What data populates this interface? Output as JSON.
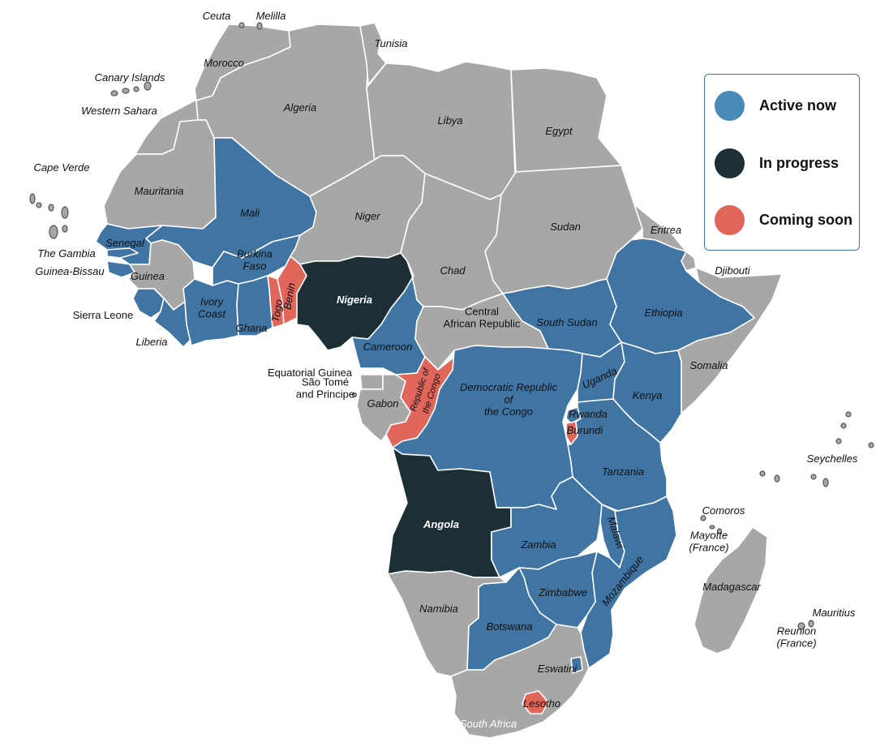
{
  "colors": {
    "active": "#3f74a3",
    "in_progress": "#1b2f35",
    "coming_soon": "#e0655a",
    "other": "#a7a7a7",
    "legend_active": "#4a8ab8"
  },
  "legend": {
    "active": "Active now",
    "in_progress": "In progress",
    "coming_soon": "Coming soon"
  },
  "countries": {
    "morocco": {
      "label": "Morocco",
      "status": "other"
    },
    "algeria": {
      "label": "Algeria",
      "status": "other"
    },
    "tunisia": {
      "label": "Tunisia",
      "status": "other"
    },
    "libya": {
      "label": "Libya",
      "status": "other"
    },
    "egypt": {
      "label": "Egypt",
      "status": "other"
    },
    "western_sahara": {
      "label": "Western Sahara",
      "status": "other"
    },
    "mauritania": {
      "label": "Mauritania",
      "status": "other"
    },
    "mali": {
      "label": "Mali",
      "status": "active"
    },
    "niger": {
      "label": "Niger",
      "status": "other"
    },
    "chad": {
      "label": "Chad",
      "status": "other"
    },
    "sudan": {
      "label": "Sudan",
      "status": "other"
    },
    "eritrea": {
      "label": "Eritrea",
      "status": "other"
    },
    "djibouti": {
      "label": "Djibouti",
      "status": "other"
    },
    "senegal": {
      "label": "Senegal",
      "status": "active"
    },
    "the_gambia": {
      "label": "The Gambia",
      "status": "active"
    },
    "guinea_bissau": {
      "label": "Guinea-Bissau",
      "status": "active"
    },
    "guinea": {
      "label": "Guinea",
      "status": "other"
    },
    "sierra_leone": {
      "label": "Sierra Leone",
      "status": "active"
    },
    "liberia": {
      "label": "Liberia",
      "status": "active"
    },
    "ivory_coast": {
      "label": "Ivory\nCoast",
      "status": "active"
    },
    "burkina_faso": {
      "label": "Burkina\nFaso",
      "status": "active"
    },
    "ghana": {
      "label": "Ghana",
      "status": "active"
    },
    "togo": {
      "label": "Togo",
      "status": "coming_soon"
    },
    "benin": {
      "label": "Benin",
      "status": "coming_soon"
    },
    "nigeria": {
      "label": "Nigeria",
      "status": "in_progress"
    },
    "cameroon": {
      "label": "Cameroon",
      "status": "active"
    },
    "central_african_republic": {
      "label": "Central\nAfrican Republic",
      "status": "other"
    },
    "south_sudan": {
      "label": "South Sudan",
      "status": "active"
    },
    "ethiopia": {
      "label": "Ethiopia",
      "status": "active"
    },
    "somalia": {
      "label": "Somalia",
      "status": "other"
    },
    "equatorial_guinea": {
      "label": "Equatorial Guinea",
      "status": "other"
    },
    "sao_tome": {
      "label": "São Tomé\nand Principe",
      "status": "other"
    },
    "gabon": {
      "label": "Gabon",
      "status": "other"
    },
    "republic_of_the_congo": {
      "label": "Republic of\nthe Congo",
      "status": "coming_soon"
    },
    "drc": {
      "label": "Democratic Republic\nof\nthe Congo",
      "status": "active"
    },
    "uganda": {
      "label": "Uganda",
      "status": "active"
    },
    "kenya": {
      "label": "Kenya",
      "status": "active"
    },
    "rwanda": {
      "label": "Rwanda",
      "status": "active"
    },
    "burundi": {
      "label": "Burundi",
      "status": "coming_soon"
    },
    "tanzania": {
      "label": "Tanzania",
      "status": "active"
    },
    "angola": {
      "label": "Angola",
      "status": "in_progress"
    },
    "zambia": {
      "label": "Zambia",
      "status": "active"
    },
    "malawi": {
      "label": "Malawi",
      "status": "active"
    },
    "mozambique": {
      "label": "Mozambique",
      "status": "active"
    },
    "zimbabwe": {
      "label": "Zimbabwe",
      "status": "active"
    },
    "namibia": {
      "label": "Namibia",
      "status": "other"
    },
    "botswana": {
      "label": "Botswana",
      "status": "active"
    },
    "eswatini": {
      "label": "Eswatini",
      "status": "active"
    },
    "lesotho": {
      "label": "Lesotho",
      "status": "coming_soon"
    },
    "south_africa": {
      "label": "South Africa",
      "status": "other"
    },
    "madagascar": {
      "label": "Madagascar",
      "status": "other"
    }
  },
  "islands": {
    "ceuta": {
      "label": "Ceuta"
    },
    "melilla": {
      "label": "Melilla"
    },
    "canary_islands": {
      "label": "Canary Islands"
    },
    "cape_verde": {
      "label": "Cape Verde"
    },
    "comoros": {
      "label": "Comoros"
    },
    "mayotte": {
      "label": "Mayotte\n(France)"
    },
    "seychelles": {
      "label": "Seychelles"
    },
    "mauritius": {
      "label": "Mauritius"
    },
    "reunion": {
      "label": "Reunion\n(France)"
    }
  }
}
